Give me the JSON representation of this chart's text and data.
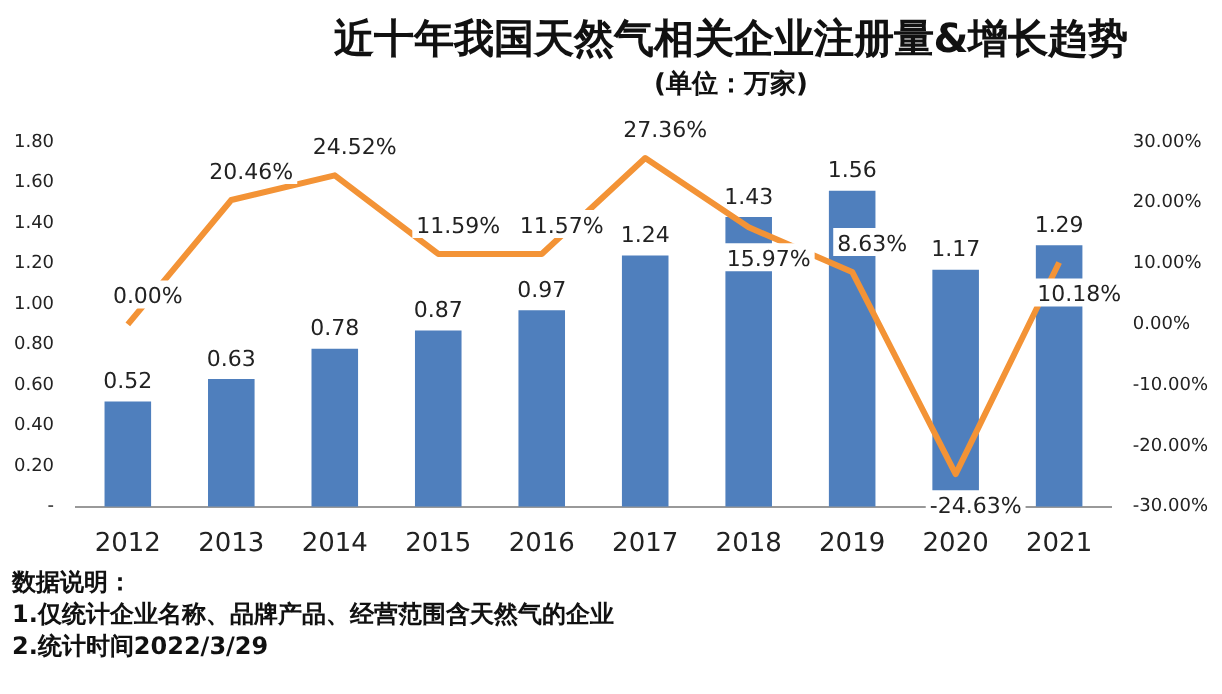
{
  "chart_data": {
    "type": "bar",
    "title": "近十年我国天然气相关企业注册量&增长趋势",
    "subtitle": "(单位：万家)",
    "categories": [
      "2012",
      "2013",
      "2014",
      "2015",
      "2016",
      "2017",
      "2018",
      "2019",
      "2020",
      "2021"
    ],
    "series": [
      {
        "color": "#4f7fbd",
        "values": [
          0.52,
          0.63,
          0.78,
          0.87,
          0.97,
          1.24,
          1.43,
          1.56,
          1.17,
          1.29
        ],
        "value_labels": [
          "0.52",
          "0.63",
          "0.78",
          "0.87",
          "0.97",
          "1.24",
          "1.43",
          "1.56",
          "1.17",
          "1.29"
        ]
      },
      {
        "type": "line",
        "axis": "y2",
        "color": "#f39336",
        "values": [
          0.0,
          20.46,
          24.52,
          11.59,
          11.57,
          27.36,
          15.97,
          8.63,
          -24.63,
          10.18
        ],
        "value_labels": [
          "0.00%",
          "20.46%",
          "24.52%",
          "11.59%",
          "11.57%",
          "27.36%",
          "15.97%",
          "8.63%",
          "-24.63%",
          "10.18%"
        ]
      }
    ],
    "ylim": [
      0,
      1.8
    ],
    "yticks": [
      {
        "value": 0,
        "label": "-"
      },
      {
        "value": 0.2,
        "label": "0.20"
      },
      {
        "value": 0.4,
        "label": "0.40"
      },
      {
        "value": 0.6,
        "label": "0.60"
      },
      {
        "value": 0.8,
        "label": "0.80"
      },
      {
        "value": 1.0,
        "label": "1.00"
      },
      {
        "value": 1.2,
        "label": "1.20"
      },
      {
        "value": 1.4,
        "label": "1.40"
      },
      {
        "value": 1.6,
        "label": "1.60"
      },
      {
        "value": 1.8,
        "label": "1.80"
      }
    ],
    "y2lim": [
      -30,
      30
    ],
    "y2ticks": [
      {
        "value": -30,
        "label": "-30.00%"
      },
      {
        "value": -20,
        "label": "-20.00%"
      },
      {
        "value": -10,
        "label": "-10.00%"
      },
      {
        "value": 0,
        "label": "0.00%"
      },
      {
        "value": 10,
        "label": "10.00%"
      },
      {
        "value": 20,
        "label": "20.00%"
      },
      {
        "value": 30,
        "label": "30.00%"
      }
    ],
    "grid": false,
    "legend": false,
    "marker": "none",
    "line_style": "solid",
    "annotations": [
      "数据说明：",
      "1.仅统计企业名称、品牌产品、经营范围含天然气的企业",
      "2.统计时间2022/3/29"
    ]
  }
}
